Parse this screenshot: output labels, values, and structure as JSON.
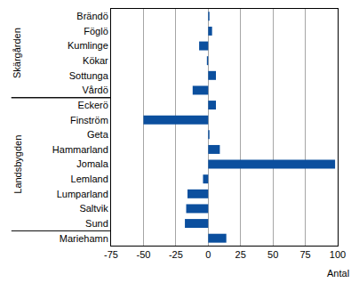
{
  "chart_data": {
    "type": "bar",
    "orientation": "horizontal",
    "categories": [
      "Brändö",
      "Föglö",
      "Kumlinge",
      "Kökar",
      "Sottunga",
      "Vårdö",
      "Eckerö",
      "Finström",
      "Geta",
      "Hammarland",
      "Jomala",
      "Lemland",
      "Lumparland",
      "Saltvik",
      "Sund",
      "Mariehamn"
    ],
    "values": [
      1,
      3,
      -7,
      -1,
      6,
      -12,
      6,
      -50,
      1,
      9,
      98,
      -4,
      -16,
      -17,
      -18,
      14
    ],
    "color": "#0b4f9e",
    "x_label": "Antal",
    "xlim": [
      -75,
      100
    ],
    "xticks": [
      -75,
      -50,
      -25,
      0,
      25,
      50,
      75,
      100
    ],
    "grid": true,
    "groups": [
      {
        "name": "Skärgården",
        "members": [
          "Brändö",
          "Föglö",
          "Kumlinge",
          "Kökar",
          "Sottunga",
          "Vårdö"
        ]
      },
      {
        "name": "Landsbygden",
        "members": [
          "Eckerö",
          "Finström",
          "Geta",
          "Hammarland",
          "Jomala",
          "Lemland",
          "Lumparland",
          "Saltvik",
          "Sund"
        ]
      }
    ]
  }
}
